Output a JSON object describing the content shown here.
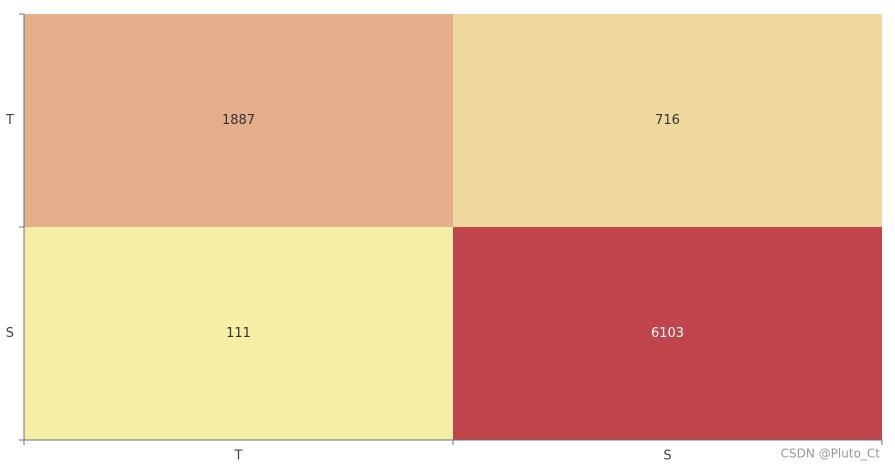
{
  "chart_data": {
    "type": "heatmap",
    "x_categories": [
      "T",
      "S"
    ],
    "y_categories": [
      "T",
      "S"
    ],
    "values": [
      [
        1887,
        716
      ],
      [
        111,
        6103
      ]
    ],
    "cell_colors": [
      [
        "#e3ae89",
        "#eed89d"
      ],
      [
        "#f5eea6",
        "#bf444c"
      ]
    ],
    "label_colors": [
      [
        "#333333",
        "#333333"
      ],
      [
        "#333333",
        "#ffffff"
      ]
    ]
  },
  "watermark": "CSDN @Pluto_Ct"
}
